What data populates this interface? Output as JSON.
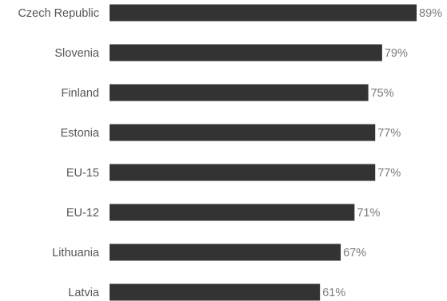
{
  "chart_data": {
    "type": "bar",
    "orientation": "horizontal",
    "categories": [
      "Czech Republic",
      "Slovenia",
      "Finland",
      "Estonia",
      "EU-15",
      "EU-12",
      "Lithuania",
      "Latvia"
    ],
    "values": [
      89,
      79,
      75,
      77,
      77,
      71,
      67,
      61
    ],
    "value_labels": [
      "89%",
      "79%",
      "75%",
      "77%",
      "77%",
      "71%",
      "67%",
      "61%"
    ],
    "unit": "%",
    "xlim": [
      0,
      89
    ],
    "bar_color": "#333333",
    "grid": false,
    "legend": "none"
  }
}
